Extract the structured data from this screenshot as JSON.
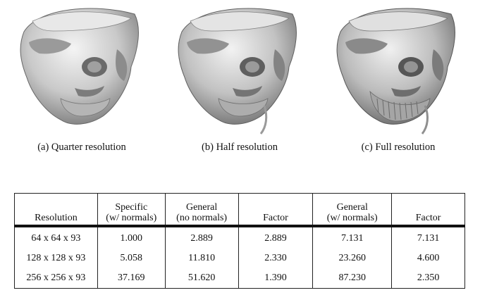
{
  "figure": {
    "panels": [
      {
        "caption": "(a) Quarter resolution"
      },
      {
        "caption": "(b) Half resolution"
      },
      {
        "caption": "(c) Full resolution"
      }
    ]
  },
  "table": {
    "headers": [
      {
        "line1": "",
        "line2": "Resolution"
      },
      {
        "line1": "Specific",
        "line2": "(w/ normals)"
      },
      {
        "line1": "General",
        "line2": "(no normals)"
      },
      {
        "line1": "",
        "line2": "Factor"
      },
      {
        "line1": "General",
        "line2": "(w/ normals)"
      },
      {
        "line1": "",
        "line2": "Factor"
      }
    ],
    "rows": [
      [
        "64 x 64 x 93",
        "1.000",
        "2.889",
        "2.889",
        "7.131",
        "7.131"
      ],
      [
        "128 x 128 x 93",
        "5.058",
        "11.810",
        "2.330",
        "23.260",
        "4.600"
      ],
      [
        "256 x 256 x 93",
        "37.169",
        "51.620",
        "1.390",
        "87.230",
        "2.350"
      ]
    ]
  }
}
